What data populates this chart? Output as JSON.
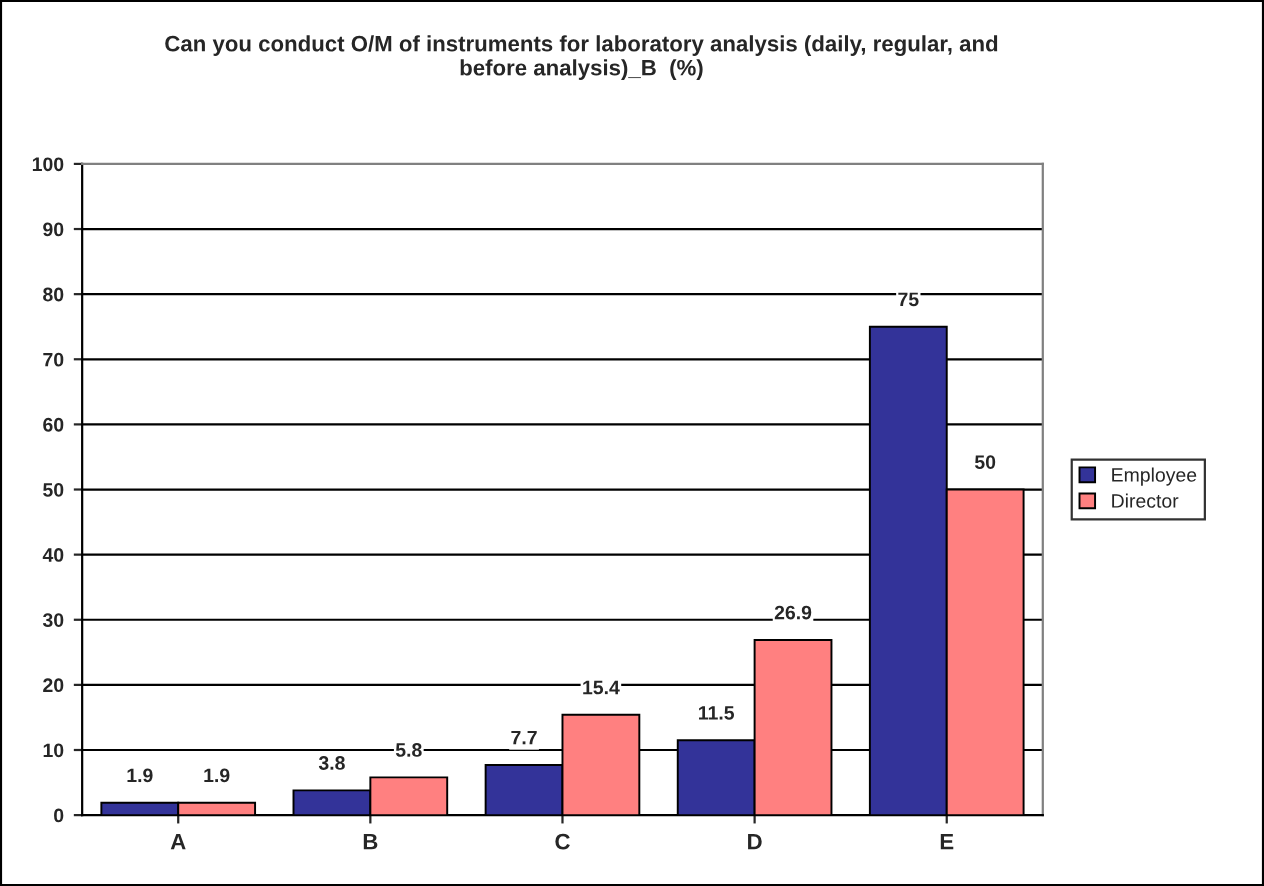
{
  "chart_data": {
    "type": "bar",
    "title": "Can you conduct O/M of instruments for laboratory analysis (daily, regular, and\nbefore analysis)_B  (%)",
    "categories": [
      "A",
      "B",
      "C",
      "D",
      "E"
    ],
    "series": [
      {
        "name": "Employee",
        "color": "#333399",
        "values": [
          1.9,
          3.8,
          7.7,
          11.5,
          75
        ]
      },
      {
        "name": "Director",
        "color": "#ff8080",
        "values": [
          1.9,
          5.8,
          15.4,
          26.9,
          50
        ]
      }
    ],
    "ylim": [
      0,
      100
    ],
    "yticks": [
      0,
      10,
      20,
      30,
      40,
      50,
      60,
      70,
      80,
      90,
      100
    ],
    "grid": "y",
    "legend": "right",
    "data_labels": true
  }
}
